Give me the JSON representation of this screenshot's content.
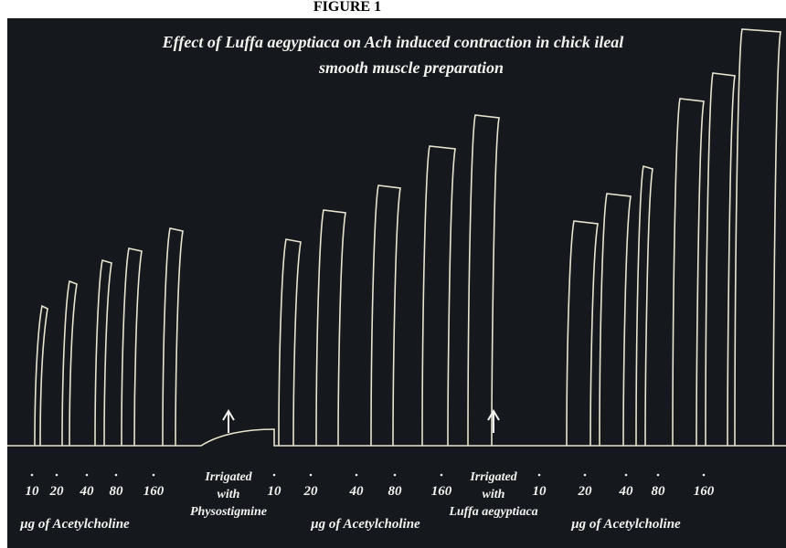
{
  "figure": {
    "label": "FIGURE 1",
    "title_lines": [
      "Effect of Luffa aegyptiaca on Ach induced contraction in chick ileal",
      "smooth muscle preparation"
    ],
    "groups": [
      {
        "doses": [
          "10",
          "20",
          "40",
          "80",
          "160"
        ],
        "unit": "μg of Acetylcholine"
      },
      {
        "doses": [
          "10",
          "20",
          "40",
          "80",
          "160"
        ],
        "unit": "μg of Acetylcholine"
      },
      {
        "doses": [
          "10",
          "20",
          "40",
          "80",
          "160"
        ],
        "unit": "μg of Acetylcholine"
      }
    ],
    "annotations": [
      {
        "lines": [
          "Irrigated",
          "with",
          "Physostigmine"
        ]
      },
      {
        "lines": [
          "Irrigated",
          "with",
          "Luffa aegyptiaca"
        ]
      }
    ]
  }
}
